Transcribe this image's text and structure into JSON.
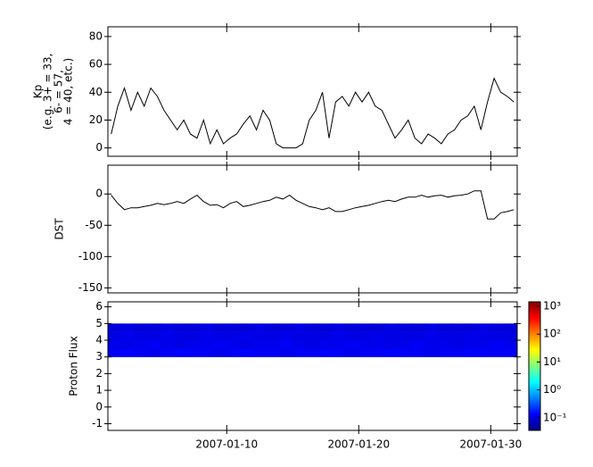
{
  "chart_data": [
    {
      "type": "line",
      "ylabel": [
        "Kp",
        "(e.g. 3+ = 33,",
        "6- = 57,",
        "4 = 40, etc.)"
      ],
      "color": "#000000",
      "xlim": [
        "2007-01-01",
        "2007-02-01"
      ],
      "ylim": [
        -6,
        87
      ],
      "yticks": [
        0,
        20,
        40,
        60,
        80
      ],
      "values": [
        10,
        30,
        43,
        27,
        40,
        30,
        43,
        37,
        27,
        20,
        13,
        20,
        10,
        7,
        20,
        3,
        13,
        3,
        7,
        10,
        17,
        23,
        13,
        27,
        20,
        3,
        0,
        0,
        0,
        3,
        20,
        27,
        40,
        7,
        33,
        37,
        30,
        40,
        33,
        40,
        30,
        27,
        17,
        7,
        13,
        20,
        7,
        3,
        10,
        7,
        3,
        10,
        13,
        20,
        23,
        30,
        13,
        33,
        50,
        40,
        37,
        33
      ]
    },
    {
      "type": "line",
      "ylabel": [
        "DST"
      ],
      "color": "#000000",
      "xlim": [
        "2007-01-01",
        "2007-02-01"
      ],
      "ylim": [
        -158,
        46
      ],
      "yticks": [
        0,
        -50,
        -100,
        -150
      ],
      "values": [
        -2,
        -15,
        -25,
        -22,
        -22,
        -20,
        -18,
        -15,
        -17,
        -15,
        -12,
        -15,
        -8,
        -2,
        -12,
        -18,
        -17,
        -22,
        -15,
        -12,
        -20,
        -18,
        -15,
        -12,
        -10,
        -5,
        -8,
        -2,
        -10,
        -15,
        -20,
        -22,
        -25,
        -22,
        -28,
        -28,
        -25,
        -22,
        -20,
        -18,
        -15,
        -12,
        -10,
        -12,
        -8,
        -5,
        -5,
        -2,
        -5,
        -3,
        -2,
        -5,
        -3,
        -2,
        0,
        5,
        5,
        -40,
        -40,
        -30,
        -28,
        -25
      ]
    },
    {
      "type": "heatmap",
      "ylabel": [
        "Proton Flux"
      ],
      "xlim": [
        "2007-01-01",
        "2007-02-01"
      ],
      "ylim": [
        -1.4,
        6.3
      ],
      "yticks": [
        -1,
        0,
        1,
        2,
        3,
        4,
        5,
        6
      ],
      "xticks": [
        {
          "value": "2007-01-10",
          "label": "2007-01-10"
        },
        {
          "value": "2007-01-20",
          "label": "2007-01-20"
        },
        {
          "value": "2007-01-30",
          "label": "2007-01-30"
        }
      ],
      "y_bins": [
        3,
        3.5,
        4,
        4.5,
        5
      ],
      "values": [
        [
          0.12,
          0.13,
          0.12,
          0.11,
          0.12,
          0.13,
          0.12,
          0.12,
          0.11,
          0.12,
          0.13,
          0.12,
          0.12,
          0.11,
          0.12,
          0.12,
          0.13,
          0.12,
          0.11,
          0.12,
          0.12,
          0.13,
          0.12,
          0.12,
          0.11,
          0.12,
          0.12,
          0.13,
          0.12,
          0.12,
          0.12
        ],
        [
          0.11,
          0.1,
          0.11,
          0.12,
          0.11,
          0.1,
          0.11,
          0.11,
          0.12,
          0.11,
          0.1,
          0.11,
          0.11,
          0.12,
          0.11,
          0.1,
          0.11,
          0.11,
          0.12,
          0.11,
          0.11,
          0.1,
          0.11,
          0.12,
          0.11,
          0.11,
          0.1,
          0.11,
          0.11,
          0.12,
          0.11
        ],
        [
          0.1,
          0.11,
          0.1,
          0.1,
          0.11,
          0.1,
          0.1,
          0.11,
          0.1,
          0.1,
          0.11,
          0.1,
          0.1,
          0.11,
          0.1,
          0.1,
          0.1,
          0.11,
          0.1,
          0.1,
          0.11,
          0.1,
          0.1,
          0.1,
          0.11,
          0.1,
          0.1,
          0.11,
          0.1,
          0.1,
          0.1
        ],
        [
          0.09,
          0.1,
          0.09,
          0.09,
          0.1,
          0.09,
          0.09,
          0.1,
          0.09,
          0.09,
          0.09,
          0.1,
          0.09,
          0.09,
          0.1,
          0.09,
          0.09,
          0.1,
          0.09,
          0.09,
          0.09,
          0.1,
          0.09,
          0.09,
          0.1,
          0.09,
          0.09,
          0.09,
          0.1,
          0.09,
          0.09
        ]
      ],
      "color_scale": "log",
      "clim": [
        0.035,
        1450
      ],
      "cticks": [
        {
          "value": 1000,
          "label": "10³"
        },
        {
          "value": 100,
          "label": "10²"
        },
        {
          "value": 10,
          "label": "10¹"
        },
        {
          "value": 1,
          "label": "10⁰"
        },
        {
          "value": 0.1,
          "label": "10⁻¹"
        }
      ]
    }
  ]
}
